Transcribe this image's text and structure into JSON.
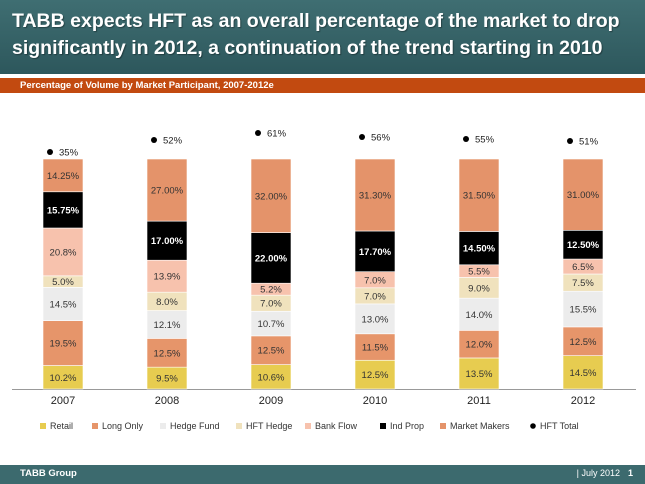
{
  "header": {
    "title": "TABB expects HFT as an overall percentage of the market to drop significantly in 2012, a continuation of the trend starting in 2010"
  },
  "subheader": {
    "title": "Percentage of Volume by Market Participant, 2007-2012e"
  },
  "footer": {
    "company": "TABB Group",
    "date": "| July 2012",
    "page": "1"
  },
  "colors": {
    "header_bg": "#2f5d61",
    "subbar_bg": "#c24a10",
    "footer_bg": "#3c6a6e"
  },
  "chart_data": {
    "type": "bar",
    "stacked": true,
    "title": "Percentage of Volume by Market Participant, 2007-2012e",
    "categories": [
      "2007",
      "2008",
      "2009",
      "2010",
      "2011",
      "2012"
    ],
    "series": [
      {
        "name": "Retail",
        "color": "#e7cc50",
        "values": [
          10.2,
          9.5,
          10.6,
          12.5,
          13.5,
          14.5
        ],
        "labels": [
          "10.2%",
          "9.5%",
          "10.6%",
          "12.5%",
          "13.5%",
          "14.5%"
        ]
      },
      {
        "name": "Long Only",
        "color": "#e6956a",
        "values": [
          19.5,
          12.5,
          12.5,
          11.5,
          12.0,
          12.5
        ],
        "labels": [
          "19.5%",
          "12.5%",
          "12.5%",
          "11.5%",
          "12.0%",
          "12.5%"
        ]
      },
      {
        "name": "Hedge Fund",
        "color": "#ececec",
        "values": [
          14.5,
          12.1,
          10.7,
          13.0,
          14.0,
          15.5
        ],
        "labels": [
          "14.5%",
          "12.1%",
          "10.7%",
          "13.0%",
          "14.0%",
          "15.5%"
        ]
      },
      {
        "name": "HFT Hedge",
        "color": "#f0e2bd",
        "values": [
          5.0,
          8.0,
          7.0,
          7.0,
          9.0,
          7.5
        ],
        "labels": [
          "5.0%",
          "8.0%",
          "7.0%",
          "7.0%",
          "9.0%",
          "7.5%"
        ]
      },
      {
        "name": "Bank Flow",
        "color": "#f7c2ad",
        "values": [
          20.8,
          13.9,
          5.2,
          7.0,
          5.5,
          6.5
        ],
        "labels": [
          "20.8%",
          "13.9%",
          "5.2%",
          "7.0%",
          "5.5%",
          "6.5%"
        ]
      },
      {
        "name": "Ind Prop",
        "color": "#000000",
        "values": [
          15.75,
          17.0,
          22.0,
          17.7,
          14.5,
          12.5
        ],
        "labels": [
          "15.75%",
          "17.00%",
          "22.00%",
          "17.70%",
          "14.50%",
          "12.50%"
        ]
      },
      {
        "name": "Market Makers",
        "color": "#e4936a",
        "values": [
          14.25,
          27.0,
          32.0,
          31.3,
          31.5,
          31.0
        ],
        "labels": [
          "14.25%",
          "27.00%",
          "32.00%",
          "31.30%",
          "31.50%",
          "31.00%"
        ]
      }
    ],
    "hft_total": {
      "name": "HFT Total",
      "values": [
        35,
        52,
        61,
        56,
        55,
        51
      ],
      "labels": [
        "35%",
        "52%",
        "61%",
        "56%",
        "55%",
        "51%"
      ]
    },
    "ylim": [
      0,
      100
    ],
    "legend_position": "bottom",
    "grid": false
  }
}
